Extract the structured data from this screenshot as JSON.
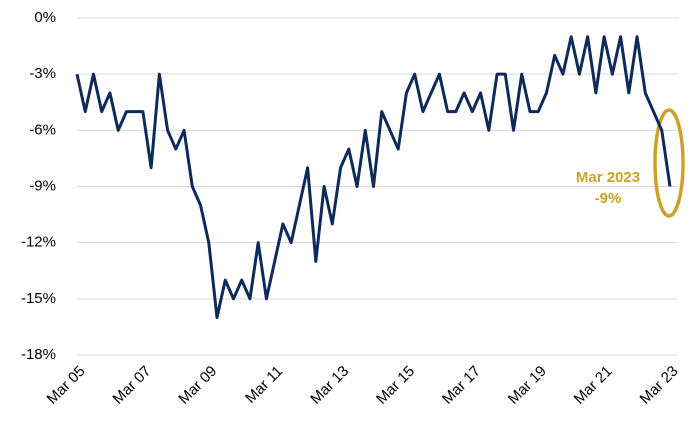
{
  "chart_data": {
    "type": "line",
    "categories": [
      "Mar 05",
      null,
      null,
      null,
      null,
      null,
      null,
      null,
      "Mar 07",
      null,
      null,
      null,
      null,
      null,
      null,
      null,
      "Mar 09",
      null,
      null,
      null,
      null,
      null,
      null,
      null,
      "Mar 11",
      null,
      null,
      null,
      null,
      null,
      null,
      null,
      "Mar 13",
      null,
      null,
      null,
      null,
      null,
      null,
      null,
      "Mar 15",
      null,
      null,
      null,
      null,
      null,
      null,
      null,
      "Mar 17",
      null,
      null,
      null,
      null,
      null,
      null,
      null,
      "Mar 19",
      null,
      null,
      null,
      null,
      null,
      null,
      null,
      "Mar 21",
      null,
      null,
      null,
      null,
      null,
      null,
      null,
      "Mar 23"
    ],
    "values": [
      -3,
      -5,
      -3,
      -5,
      -4,
      -6,
      -5,
      -5,
      -5,
      -8,
      -3,
      -6,
      -7,
      -6,
      -9,
      -10,
      -12,
      -16,
      -14,
      -15,
      -14,
      -15,
      -12,
      -15,
      -13,
      -11,
      -12,
      -10,
      -8,
      -13,
      -9,
      -11,
      -8,
      -7,
      -9,
      -6,
      -9,
      -5,
      -6,
      -7,
      -4,
      -3,
      -5,
      -4,
      -3,
      -5,
      -5,
      -4,
      -5,
      -4,
      -6,
      -3,
      -3,
      -6,
      -3,
      -5,
      -5,
      -4,
      -2,
      -3,
      -1,
      -3,
      -1,
      -4,
      -1,
      -3,
      -1,
      -4,
      -1,
      -4,
      -5,
      -6,
      -9
    ],
    "color": "#0e2a5a",
    "ylim": [
      -18,
      0
    ],
    "yticks": [
      {
        "value": -18,
        "label": "-18%"
      },
      {
        "value": -15,
        "label": "-15%"
      },
      {
        "value": -12,
        "label": "-12%"
      },
      {
        "value": -9,
        "label": "-9%"
      },
      {
        "value": -6,
        "label": "-6%"
      },
      {
        "value": -3,
        "label": "-3%"
      },
      {
        "value": 0,
        "label": "0%"
      }
    ],
    "grid": true,
    "annotations": [
      {
        "text": "Mar 2023",
        "color": "#c9a227"
      },
      {
        "text": "-9%",
        "color": "#c9a227"
      }
    ]
  }
}
